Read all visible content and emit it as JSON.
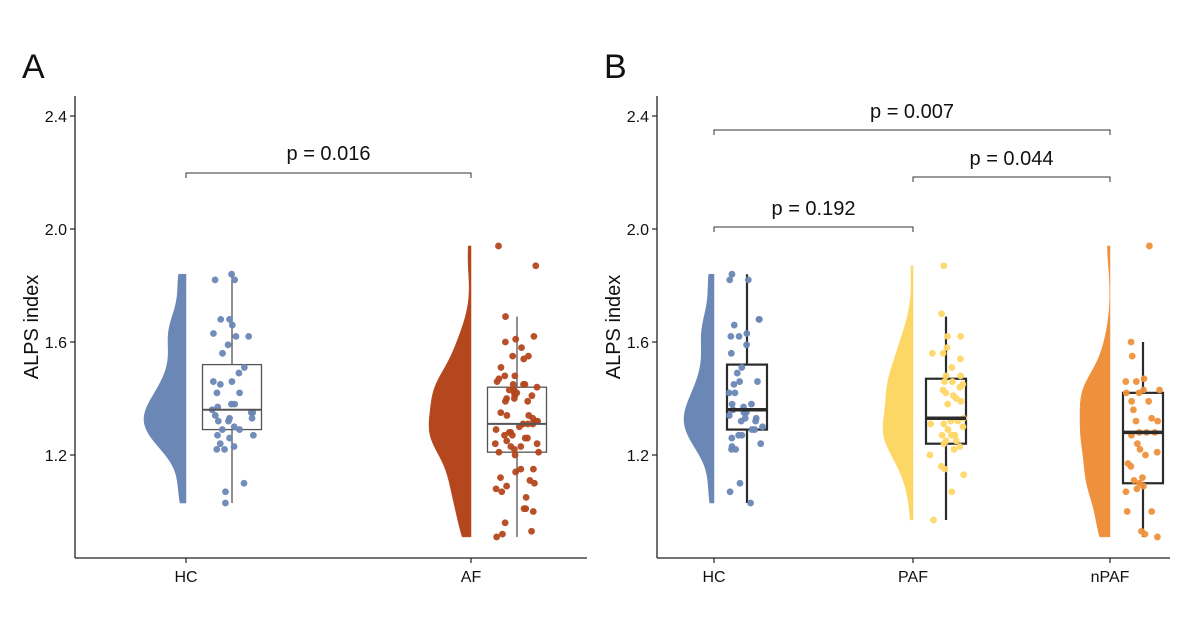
{
  "chart_data": [
    {
      "panel_label": "A",
      "type": "raincloud",
      "ylabel": "ALPS index",
      "xlabel": "",
      "ylim": [
        0.84,
        2.47
      ],
      "yticks": [
        "1.2",
        "1.6",
        "2.0",
        "2.4"
      ],
      "grid": false,
      "categories": [
        "HC",
        "AF"
      ],
      "colors": {
        "HC": "#6a87b5",
        "AF": "#b4471d"
      },
      "boxes": {
        "HC": {
          "whisker_low": 1.03,
          "q1": 1.29,
          "median": 1.36,
          "q3": 1.52,
          "whisker_high": 1.84
        },
        "AF": {
          "whisker_low": 0.91,
          "q1": 1.21,
          "median": 1.31,
          "q3": 1.44,
          "whisker_high": 1.69
        }
      },
      "points": {
        "HC": [
          1.84,
          1.82,
          1.82,
          1.68,
          1.68,
          1.66,
          1.63,
          1.62,
          1.62,
          1.59,
          1.56,
          1.51,
          1.49,
          1.46,
          1.46,
          1.45,
          1.42,
          1.42,
          1.38,
          1.38,
          1.37,
          1.36,
          1.35,
          1.35,
          1.34,
          1.33,
          1.33,
          1.32,
          1.32,
          1.3,
          1.29,
          1.29,
          1.27,
          1.27,
          1.26,
          1.24,
          1.23,
          1.22,
          1.22,
          1.1,
          1.07,
          1.03
        ],
        "AF": [
          1.94,
          1.87,
          1.69,
          1.62,
          1.61,
          1.6,
          1.58,
          1.55,
          1.55,
          1.54,
          1.51,
          1.48,
          1.48,
          1.47,
          1.46,
          1.45,
          1.45,
          1.45,
          1.44,
          1.43,
          1.43,
          1.42,
          1.42,
          1.41,
          1.41,
          1.4,
          1.4,
          1.39,
          1.39,
          1.35,
          1.34,
          1.34,
          1.33,
          1.32,
          1.32,
          1.31,
          1.31,
          1.31,
          1.3,
          1.29,
          1.28,
          1.28,
          1.27,
          1.27,
          1.26,
          1.26,
          1.25,
          1.24,
          1.24,
          1.23,
          1.23,
          1.22,
          1.21,
          1.21,
          1.2,
          1.15,
          1.15,
          1.14,
          1.12,
          1.11,
          1.1,
          1.09,
          1.08,
          1.07,
          1.05,
          1.01,
          1.01,
          1.0,
          0.96,
          0.93,
          0.92,
          0.91
        ]
      },
      "comparisons": [
        {
          "from": "HC",
          "to": "AF",
          "label": "p = 0.016"
        }
      ]
    },
    {
      "panel_label": "B",
      "type": "raincloud",
      "ylabel": "ALPS index",
      "xlabel": "",
      "ylim": [
        0.84,
        2.47
      ],
      "yticks": [
        "1.2",
        "1.6",
        "2.0",
        "2.4"
      ],
      "grid": false,
      "categories": [
        "HC",
        "PAF",
        "nPAF"
      ],
      "colors": {
        "HC": "#6a87b5",
        "PAF": "#fdd766",
        "nPAF": "#ef913c"
      },
      "boxes": {
        "HC": {
          "whisker_low": 1.03,
          "q1": 1.29,
          "median": 1.36,
          "q3": 1.52,
          "whisker_high": 1.84
        },
        "PAF": {
          "whisker_low": 0.97,
          "q1": 1.24,
          "median": 1.33,
          "q3": 1.47,
          "whisker_high": 1.69
        },
        "nPAF": {
          "whisker_low": 0.91,
          "q1": 1.1,
          "median": 1.28,
          "q3": 1.42,
          "whisker_high": 1.6
        }
      },
      "points": {
        "HC": [
          1.84,
          1.82,
          1.82,
          1.68,
          1.68,
          1.66,
          1.63,
          1.62,
          1.62,
          1.59,
          1.56,
          1.51,
          1.49,
          1.46,
          1.46,
          1.45,
          1.42,
          1.42,
          1.38,
          1.38,
          1.37,
          1.36,
          1.35,
          1.35,
          1.34,
          1.33,
          1.33,
          1.32,
          1.32,
          1.3,
          1.29,
          1.29,
          1.27,
          1.27,
          1.26,
          1.24,
          1.23,
          1.22,
          1.22,
          1.1,
          1.07,
          1.03
        ],
        "PAF": [
          1.87,
          1.7,
          1.62,
          1.62,
          1.58,
          1.56,
          1.56,
          1.54,
          1.51,
          1.48,
          1.48,
          1.46,
          1.46,
          1.45,
          1.44,
          1.43,
          1.42,
          1.41,
          1.4,
          1.39,
          1.38,
          1.33,
          1.32,
          1.32,
          1.31,
          1.31,
          1.3,
          1.29,
          1.27,
          1.27,
          1.27,
          1.25,
          1.25,
          1.24,
          1.23,
          1.22,
          1.2,
          1.16,
          1.15,
          1.13,
          1.07,
          0.97
        ],
        "nPAF": [
          1.94,
          1.6,
          1.55,
          1.47,
          1.46,
          1.46,
          1.43,
          1.43,
          1.42,
          1.42,
          1.39,
          1.39,
          1.36,
          1.33,
          1.32,
          1.32,
          1.28,
          1.28,
          1.28,
          1.27,
          1.24,
          1.22,
          1.21,
          1.2,
          1.17,
          1.16,
          1.12,
          1.11,
          1.1,
          1.09,
          1.08,
          1.07,
          1.0,
          1.0,
          0.93,
          0.92,
          0.91
        ]
      },
      "comparisons": [
        {
          "from": "HC",
          "to": "nPAF",
          "label": "p = 0.007"
        },
        {
          "from": "PAF",
          "to": "nPAF",
          "label": "p = 0.044"
        },
        {
          "from": "HC",
          "to": "PAF",
          "label": "p = 0.192"
        }
      ]
    }
  ]
}
